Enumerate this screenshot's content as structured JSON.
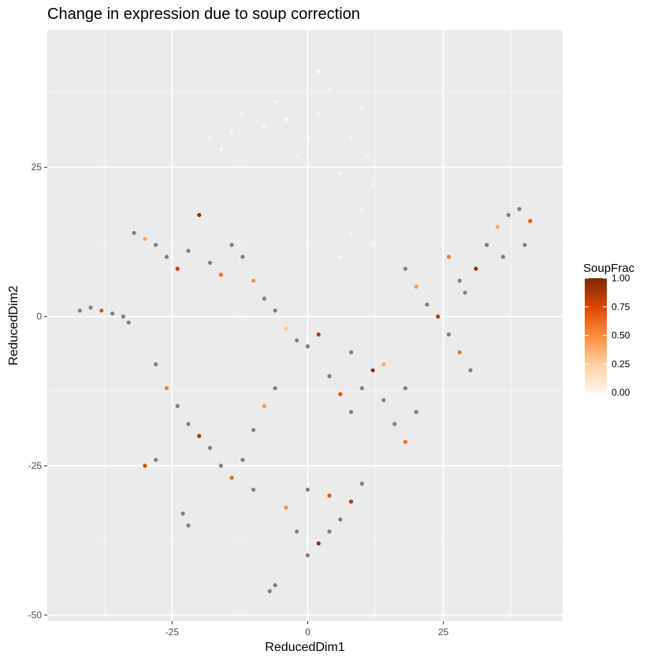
{
  "chart_data": {
    "type": "scatter",
    "title": "Change in expression due to soup correction",
    "xlabel": "ReducedDim1",
    "ylabel": "ReducedDim2",
    "xlim": [
      -48,
      47
    ],
    "ylim": [
      -51,
      48
    ],
    "x_ticks": [
      -25,
      0,
      25
    ],
    "y_ticks": [
      -50,
      -25,
      0,
      25
    ],
    "grid": true,
    "background": "#ebebeb",
    "na_color": "#7f7f7f",
    "legend": {
      "title": "SoupFrac",
      "position": "right",
      "ticks": [
        1.0,
        0.75,
        0.5,
        0.25,
        0.0
      ],
      "tick_labels": [
        "1.00",
        "0.75",
        "0.50",
        "0.25",
        "0.00"
      ],
      "colors": [
        "#fff5eb",
        "#fdd0a2",
        "#fd8d3c",
        "#d94801",
        "#7f2704"
      ]
    },
    "series": [
      {
        "color_scale": "SoupFrac",
        "points": [
          {
            "x": -42,
            "y": 1,
            "v": null
          },
          {
            "x": -40,
            "y": 1.5,
            "v": null
          },
          {
            "x": -38,
            "y": 1,
            "v": 0.7
          },
          {
            "x": -36,
            "y": 0.5,
            "v": null
          },
          {
            "x": -34,
            "y": 0,
            "v": null
          },
          {
            "x": -33,
            "y": -1,
            "v": null
          },
          {
            "x": -32,
            "y": 14,
            "v": null
          },
          {
            "x": -30,
            "y": 13,
            "v": 0.4
          },
          {
            "x": -28,
            "y": 12,
            "v": null
          },
          {
            "x": -26,
            "y": 10,
            "v": null
          },
          {
            "x": -24,
            "y": 8,
            "v": 0.8
          },
          {
            "x": -22,
            "y": 11,
            "v": null
          },
          {
            "x": -20,
            "y": 17,
            "v": 0.95
          },
          {
            "x": -18,
            "y": 9,
            "v": null
          },
          {
            "x": -16,
            "y": 7,
            "v": 0.6
          },
          {
            "x": -14,
            "y": 12,
            "v": null
          },
          {
            "x": -12,
            "y": 10,
            "v": null
          },
          {
            "x": -10,
            "y": 6,
            "v": 0.5
          },
          {
            "x": -8,
            "y": 3,
            "v": null
          },
          {
            "x": -6,
            "y": 1,
            "v": null
          },
          {
            "x": -4,
            "y": -2,
            "v": 0.3
          },
          {
            "x": -2,
            "y": -4,
            "v": null
          },
          {
            "x": 0,
            "y": -5,
            "v": null
          },
          {
            "x": 2,
            "y": -3,
            "v": 0.85
          },
          {
            "x": -28,
            "y": -8,
            "v": null
          },
          {
            "x": -26,
            "y": -12,
            "v": 0.55
          },
          {
            "x": -24,
            "y": -15,
            "v": null
          },
          {
            "x": -22,
            "y": -18,
            "v": null
          },
          {
            "x": -20,
            "y": -20,
            "v": 0.9
          },
          {
            "x": -18,
            "y": -22,
            "v": null
          },
          {
            "x": -16,
            "y": -25,
            "v": null
          },
          {
            "x": -14,
            "y": -27,
            "v": 0.65
          },
          {
            "x": -12,
            "y": -24,
            "v": null
          },
          {
            "x": -10,
            "y": -19,
            "v": null
          },
          {
            "x": -8,
            "y": -15,
            "v": 0.45
          },
          {
            "x": -6,
            "y": -12,
            "v": null
          },
          {
            "x": -30,
            "y": -25,
            "v": 0.75
          },
          {
            "x": -28,
            "y": -24,
            "v": null
          },
          {
            "x": -23,
            "y": -33,
            "v": null
          },
          {
            "x": -22,
            "y": -35,
            "v": null
          },
          {
            "x": -10,
            "y": -29,
            "v": null
          },
          {
            "x": 4,
            "y": -10,
            "v": null
          },
          {
            "x": 6,
            "y": -13,
            "v": 0.7
          },
          {
            "x": 8,
            "y": -16,
            "v": null
          },
          {
            "x": 10,
            "y": -12,
            "v": null
          },
          {
            "x": 12,
            "y": -9,
            "v": 0.95
          },
          {
            "x": 14,
            "y": -14,
            "v": null
          },
          {
            "x": 16,
            "y": -18,
            "v": null
          },
          {
            "x": 18,
            "y": -21,
            "v": 0.6
          },
          {
            "x": 20,
            "y": -16,
            "v": null
          },
          {
            "x": 18,
            "y": -12,
            "v": null
          },
          {
            "x": 14,
            "y": -8,
            "v": 0.4
          },
          {
            "x": 8,
            "y": -6,
            "v": null
          },
          {
            "x": 10,
            "y": -28,
            "v": null
          },
          {
            "x": 8,
            "y": -31,
            "v": 0.85
          },
          {
            "x": 6,
            "y": -34,
            "v": null
          },
          {
            "x": 4,
            "y": -36,
            "v": null
          },
          {
            "x": 2,
            "y": -38,
            "v": 0.95
          },
          {
            "x": 0,
            "y": -40,
            "v": null
          },
          {
            "x": -2,
            "y": -36,
            "v": null
          },
          {
            "x": -4,
            "y": -32,
            "v": 0.5
          },
          {
            "x": 0,
            "y": -29,
            "v": null
          },
          {
            "x": 4,
            "y": -30,
            "v": 0.7
          },
          {
            "x": -6,
            "y": -45,
            "v": null
          },
          {
            "x": -7,
            "y": -46,
            "v": null
          },
          {
            "x": 6,
            "y": 24,
            "v": 0.02
          },
          {
            "x": 8,
            "y": 30,
            "v": 0.0
          },
          {
            "x": 10,
            "y": 35,
            "v": 0.05
          },
          {
            "x": 4,
            "y": 38,
            "v": 0.0
          },
          {
            "x": 2,
            "y": 34,
            "v": 0.03
          },
          {
            "x": 0,
            "y": 30,
            "v": 0.0
          },
          {
            "x": -2,
            "y": 27,
            "v": 0.04
          },
          {
            "x": -4,
            "y": 33,
            "v": 0.0
          },
          {
            "x": -6,
            "y": 36,
            "v": 0.02
          },
          {
            "x": -8,
            "y": 32,
            "v": 0.0
          },
          {
            "x": -10,
            "y": 29,
            "v": 0.06
          },
          {
            "x": -12,
            "y": 34,
            "v": 0.0
          },
          {
            "x": -14,
            "y": 31,
            "v": 0.02
          },
          {
            "x": -16,
            "y": 28,
            "v": 0.0
          },
          {
            "x": -18,
            "y": 30,
            "v": 0.05
          },
          {
            "x": 12,
            "y": 22,
            "v": 0.0
          },
          {
            "x": 10,
            "y": 18,
            "v": 0.03
          },
          {
            "x": 8,
            "y": 14,
            "v": 0.0
          },
          {
            "x": 12,
            "y": 12,
            "v": 0.02
          },
          {
            "x": 6,
            "y": 10,
            "v": 0.0
          },
          {
            "x": 2,
            "y": 41,
            "v": 0.0
          },
          {
            "x": 11,
            "y": 27,
            "v": 0.04
          },
          {
            "x": 18,
            "y": 8,
            "v": null
          },
          {
            "x": 20,
            "y": 5,
            "v": 0.45
          },
          {
            "x": 22,
            "y": 2,
            "v": null
          },
          {
            "x": 24,
            "y": 0,
            "v": 0.85
          },
          {
            "x": 26,
            "y": -3,
            "v": null
          },
          {
            "x": 28,
            "y": -6,
            "v": 0.6
          },
          {
            "x": 30,
            "y": -9,
            "v": null
          },
          {
            "x": 29,
            "y": 4,
            "v": null
          },
          {
            "x": 31,
            "y": 8,
            "v": 0.95
          },
          {
            "x": 33,
            "y": 12,
            "v": null
          },
          {
            "x": 35,
            "y": 15,
            "v": 0.4
          },
          {
            "x": 37,
            "y": 17,
            "v": null
          },
          {
            "x": 39,
            "y": 18,
            "v": null
          },
          {
            "x": 41,
            "y": 16,
            "v": 0.7
          },
          {
            "x": 40,
            "y": 12,
            "v": null
          },
          {
            "x": 36,
            "y": 10,
            "v": null
          },
          {
            "x": 26,
            "y": 10,
            "v": 0.55
          },
          {
            "x": 28,
            "y": 6,
            "v": null
          }
        ]
      }
    ]
  }
}
